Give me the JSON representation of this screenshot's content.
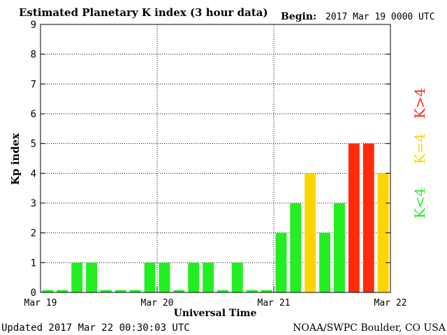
{
  "header": {
    "title": "Estimated Planetary K index (3 hour data)",
    "begin_label": "Begin:",
    "begin_value": "2017 Mar 19 0000 UTC"
  },
  "footer": {
    "updated": "Updated 2017 Mar 22 00:30:03 UTC",
    "source": "NOAA/SWPC Boulder, CO USA"
  },
  "legend": {
    "low": "K<4",
    "mid": "K=4",
    "high": "K>4"
  },
  "colors": {
    "low": "#22ee22",
    "mid": "#ffd400",
    "high": "#ff2a0a",
    "background": "#ffffff",
    "axis": "#000000"
  },
  "chart_data": {
    "type": "bar",
    "title": "Estimated Planetary K index (3 hour data)",
    "xlabel": "Universal Time",
    "ylabel": "Kp index",
    "ylim": [
      0,
      9
    ],
    "yticks": [
      "0",
      "1",
      "2",
      "3",
      "4",
      "5",
      "6",
      "7",
      "8",
      "9"
    ],
    "xticks": [
      "Mar 19",
      "Mar 20",
      "Mar 21",
      "Mar 22"
    ],
    "grid": true,
    "values": [
      0,
      0,
      1,
      1,
      0,
      0,
      0,
      1,
      1,
      0,
      1,
      1,
      0,
      1,
      0,
      0,
      2,
      3,
      4,
      2,
      3,
      5,
      5,
      4
    ]
  }
}
